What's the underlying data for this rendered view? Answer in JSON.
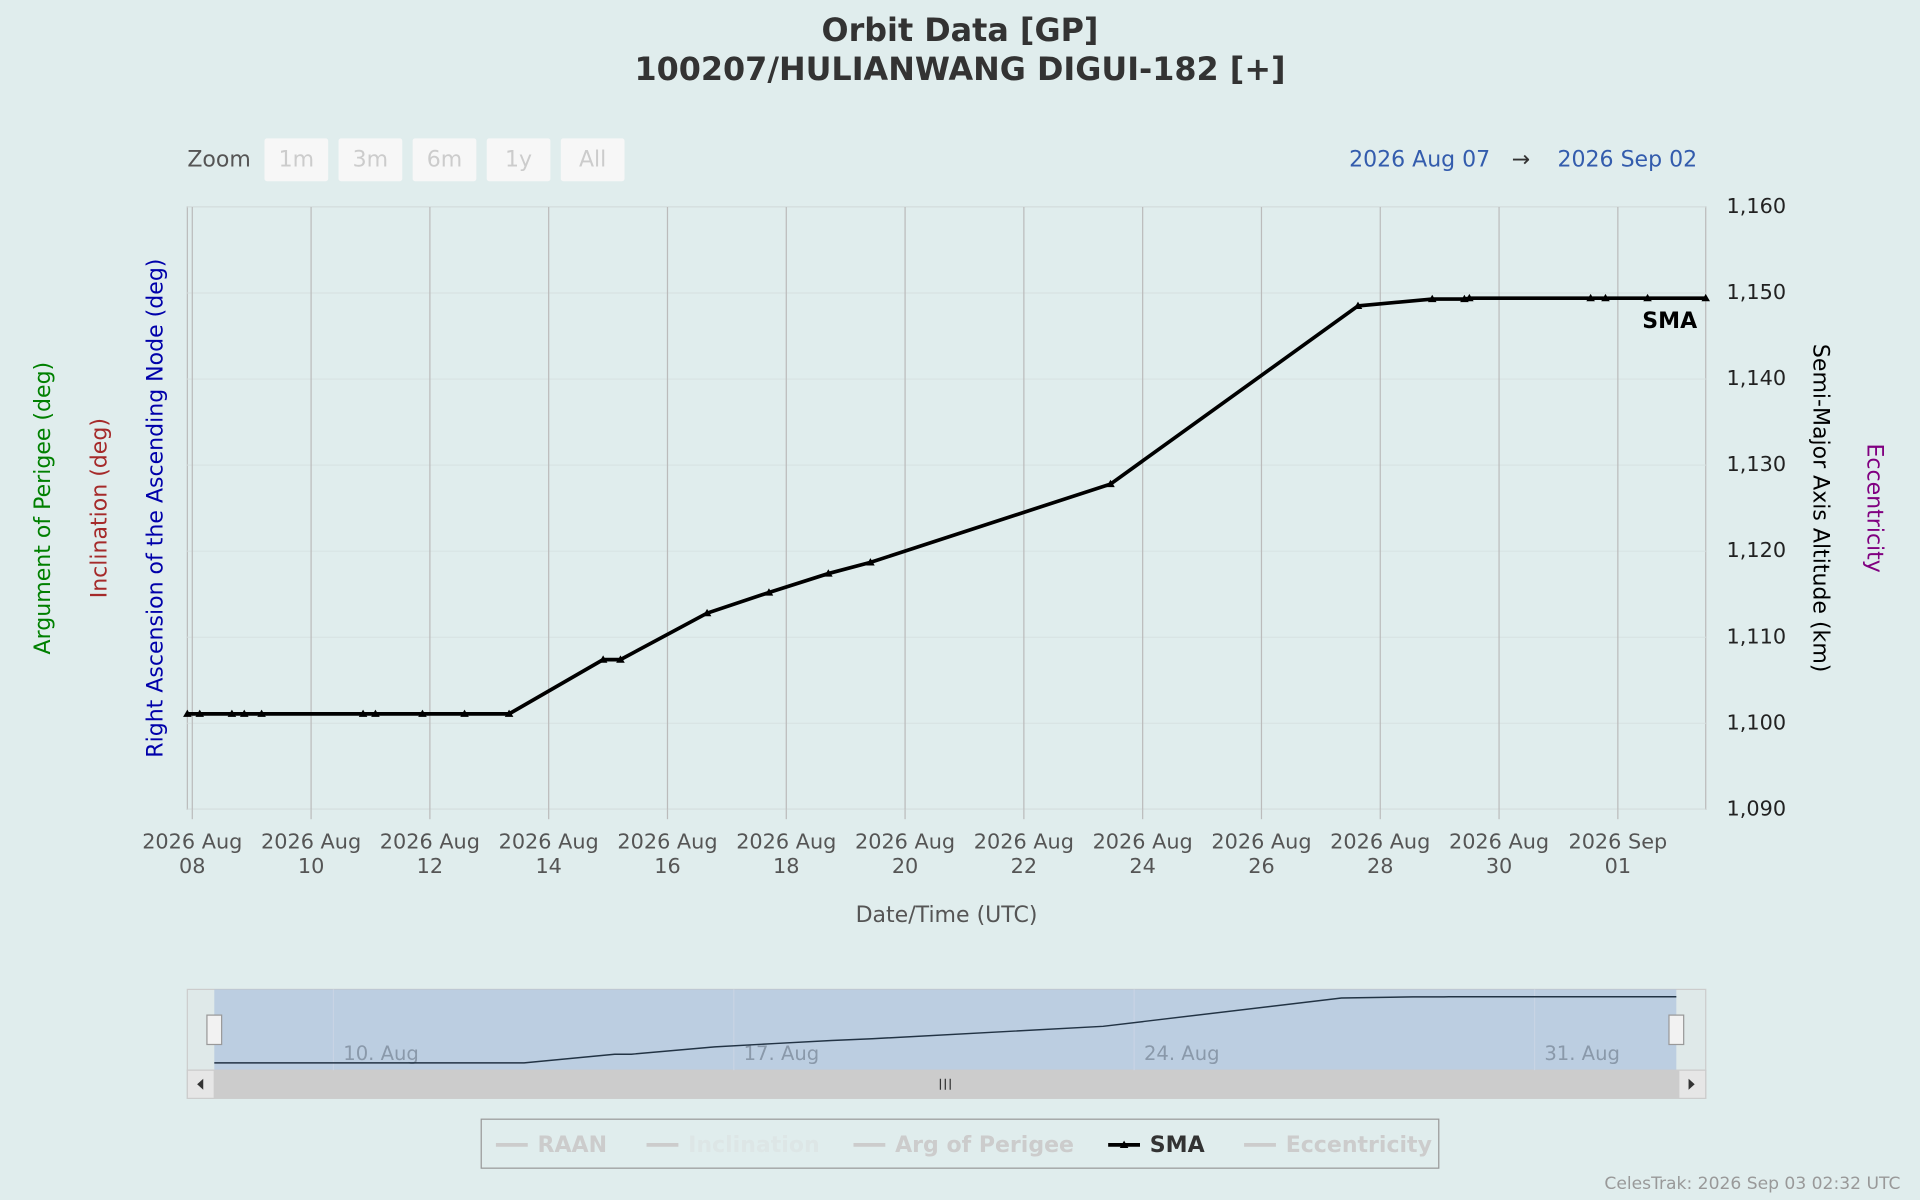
{
  "chart_data": {
    "type": "line",
    "title": "Orbit Data [GP]",
    "subtitle": "100207/HULIANWANG DIGUI-182 [+]",
    "x_axis_title": "Date/Time (UTC)",
    "zoom_label": "Zoom",
    "zoom_buttons": [
      "1m",
      "3m",
      "6m",
      "1y",
      "All"
    ],
    "range_from": "2026 Aug 07",
    "range_arrow": "→",
    "range_to": "2026 Sep 02",
    "credit": "CelesTrak: 2026 Sep 03 02:32 UTC",
    "end_label": "SMA",
    "x": [
      "2026-08-07T22:00",
      "2026-08-08T03:00",
      "2026-08-08T16:00",
      "2026-08-08T21:00",
      "2026-08-09T04:00",
      "2026-08-10T21:00",
      "2026-08-11T02:00",
      "2026-08-11T21:00",
      "2026-08-12T14:00",
      "2026-08-13T08:00",
      "2026-08-14T22:00",
      "2026-08-15T05:00",
      "2026-08-16T16:00",
      "2026-08-17T17:00",
      "2026-08-18T17:00",
      "2026-08-19T10:00",
      "2026-08-23T11:00",
      "2026-08-27T15:00",
      "2026-08-28T21:00",
      "2026-08-29T10:00",
      "2026-08-29T12:00",
      "2026-08-31T13:00",
      "2026-08-31T19:00",
      "2026-09-01T12:00",
      "2026-09-02T11:30"
    ],
    "series": [
      {
        "name": "RAAN",
        "color": "#0000aa",
        "visible": false,
        "axis_title": "Right Ascension of the Ascending Node (deg)"
      },
      {
        "name": "Inclination",
        "color": "#a52a2a",
        "visible": false,
        "axis_title": "Inclination (deg)"
      },
      {
        "name": "Arg of Perigee",
        "color": "#008000",
        "visible": false,
        "axis_title": "Argument of Perigee (deg)"
      },
      {
        "name": "SMA",
        "color": "#000000",
        "visible": true,
        "axis_title": "Semi-Major Axis Altitude (km)",
        "values": [
          1101.1,
          1101.1,
          1101.1,
          1101.1,
          1101.1,
          1101.1,
          1101.1,
          1101.1,
          1101.1,
          1101.1,
          1107.4,
          1107.4,
          1112.8,
          1115.2,
          1117.4,
          1118.7,
          1127.8,
          1148.5,
          1149.3,
          1149.3,
          1149.4,
          1149.4,
          1149.4,
          1149.4,
          1149.4
        ]
      },
      {
        "name": "Eccentricity",
        "color": "#800080",
        "visible": false,
        "axis_title": "Eccentricity"
      }
    ],
    "xlim": [
      "2026-08-07T22:00",
      "2026-09-02T11:30"
    ],
    "xticks": [
      {
        "value": "2026-08-08",
        "label": [
          "2026 Aug",
          "08"
        ]
      },
      {
        "value": "2026-08-10",
        "label": [
          "2026 Aug",
          "10"
        ]
      },
      {
        "value": "2026-08-12",
        "label": [
          "2026 Aug",
          "12"
        ]
      },
      {
        "value": "2026-08-14",
        "label": [
          "2026 Aug",
          "14"
        ]
      },
      {
        "value": "2026-08-16",
        "label": [
          "2026 Aug",
          "16"
        ]
      },
      {
        "value": "2026-08-18",
        "label": [
          "2026 Aug",
          "18"
        ]
      },
      {
        "value": "2026-08-20",
        "label": [
          "2026 Aug",
          "20"
        ]
      },
      {
        "value": "2026-08-22",
        "label": [
          "2026 Aug",
          "22"
        ]
      },
      {
        "value": "2026-08-24",
        "label": [
          "2026 Aug",
          "24"
        ]
      },
      {
        "value": "2026-08-26",
        "label": [
          "2026 Aug",
          "26"
        ]
      },
      {
        "value": "2026-08-28",
        "label": [
          "2026 Aug",
          "28"
        ]
      },
      {
        "value": "2026-08-30",
        "label": [
          "2026 Aug",
          "30"
        ]
      },
      {
        "value": "2026-09-01",
        "label": [
          "2026 Sep",
          "01"
        ]
      }
    ],
    "ylim": [
      1090,
      1160
    ],
    "yticks": [
      {
        "value": 1090,
        "label": "1,090"
      },
      {
        "value": 1100,
        "label": "1,100"
      },
      {
        "value": 1110,
        "label": "1,110"
      },
      {
        "value": 1120,
        "label": "1,120"
      },
      {
        "value": 1130,
        "label": "1,130"
      },
      {
        "value": 1140,
        "label": "1,140"
      },
      {
        "value": 1150,
        "label": "1,150"
      },
      {
        "value": 1160,
        "label": "1,160"
      }
    ],
    "grid": true,
    "navigator_ticks": [
      {
        "value": "2026-08-10",
        "label": "10. Aug"
      },
      {
        "value": "2026-08-17",
        "label": "17. Aug"
      },
      {
        "value": "2026-08-24",
        "label": "24. Aug"
      },
      {
        "value": "2026-08-31",
        "label": "31. Aug"
      }
    ]
  }
}
